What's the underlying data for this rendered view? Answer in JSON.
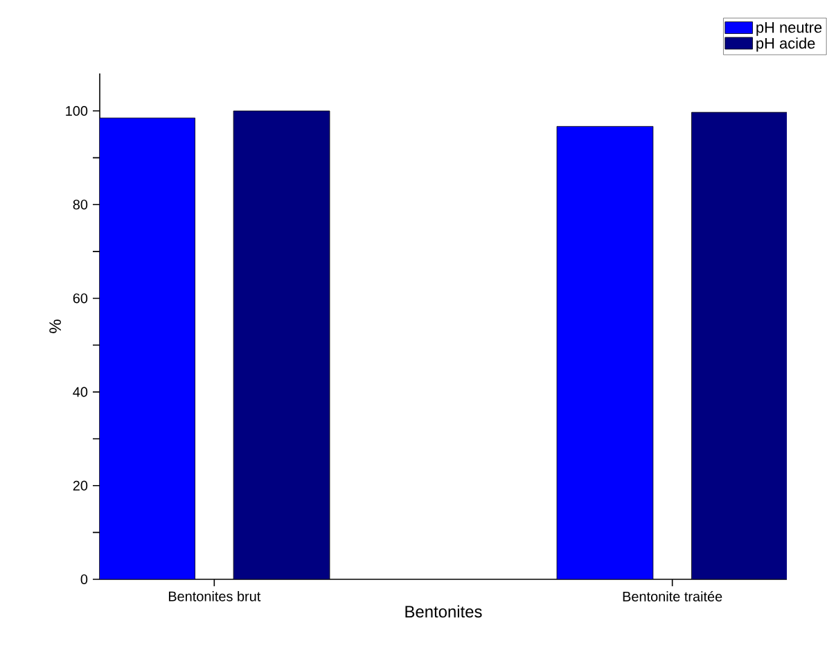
{
  "chart_data": {
    "type": "bar",
    "xlabel": "Bentonites",
    "ylabel": "%",
    "categories": [
      "Bentonites brut",
      "Bentonite traitée"
    ],
    "series": [
      {
        "name": "pH neutre",
        "color": "#0000ff",
        "values": [
          98.5,
          96.7
        ]
      },
      {
        "name": "pH acide",
        "color": "#000080",
        "values": [
          100,
          99.7
        ]
      }
    ],
    "ylim": [
      0,
      108
    ],
    "yticks": [
      0,
      {
        "value": 10,
        "label": null
      },
      20,
      {
        "value": 30,
        "label": null
      },
      40,
      {
        "value": 50,
        "label": null
      },
      60,
      {
        "value": 70,
        "label": null
      },
      80,
      {
        "value": 90,
        "label": null
      },
      100
    ],
    "legend": "top right",
    "grid": false
  }
}
